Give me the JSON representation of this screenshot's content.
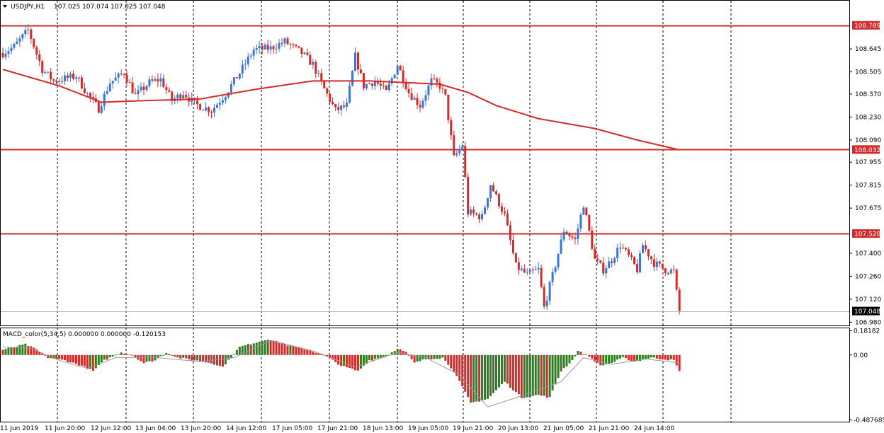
{
  "header": {
    "menu_icon": "triangle-down-icon",
    "symbol": "USDJPY,H1",
    "ohlc": "107.025 107.074 107.025 107.048"
  },
  "indicator": {
    "label": "MACD_color(5,34,5) 0.000000 0.000000 -0.120153"
  },
  "colors": {
    "bull": "#3a75d8",
    "bear": "#d42a2a",
    "hline": "#d42a2a",
    "ma": "#d42a2a",
    "hist_up": "#2e7d1e",
    "hist_down": "#d42a2a",
    "signal": "#9a9a9a",
    "grid": "#000000"
  },
  "chart_data": [
    {
      "type": "candlestick",
      "symbol": "USDJPY",
      "timeframe": "H1",
      "y_ticks": [
        "108.645",
        "108.505",
        "108.370",
        "108.230",
        "108.090",
        "107.955",
        "107.815",
        "107.675",
        "107.400",
        "107.260",
        "107.120",
        "106.980"
      ],
      "ylim": [
        106.96,
        108.9
      ],
      "x_ticks": [
        "11 Jun 2019",
        "11 Jun 20:00",
        "12 Jun 12:00",
        "13 Jun 04:00",
        "13 Jun 20:00",
        "14 Jun 12:00",
        "17 Jun 05:00",
        "17 Jun 21:00",
        "18 Jun 13:00",
        "19 Jun 05:00",
        "19 Jun 21:00",
        "20 Jun 13:00",
        "21 Jun 05:00",
        "21 Jun 21:00",
        "24 Jun 14:00"
      ],
      "horizontal_lines": [
        {
          "value": 108.789,
          "label": "108.789"
        },
        {
          "value": 108.032,
          "label": "108.032"
        },
        {
          "value": 107.52,
          "label": "107.520"
        }
      ],
      "current_price": {
        "value": 107.048,
        "label": "107.048"
      },
      "grid": "vertical-dashed",
      "anchors": [
        [
          0,
          108.62
        ],
        [
          4,
          108.66
        ],
        [
          9,
          108.76
        ],
        [
          14,
          108.52
        ],
        [
          18,
          108.45
        ],
        [
          26,
          108.48
        ],
        [
          30,
          108.37
        ],
        [
          34,
          108.28
        ],
        [
          38,
          108.44
        ],
        [
          43,
          108.5
        ],
        [
          47,
          108.36
        ],
        [
          52,
          108.44
        ],
        [
          56,
          108.46
        ],
        [
          60,
          108.33
        ],
        [
          64,
          108.38
        ],
        [
          68,
          108.31
        ],
        [
          74,
          108.27
        ],
        [
          79,
          108.37
        ],
        [
          84,
          108.5
        ],
        [
          89,
          108.64
        ],
        [
          95,
          108.65
        ],
        [
          100,
          108.69
        ],
        [
          106,
          108.62
        ],
        [
          110,
          108.55
        ],
        [
          114,
          108.4
        ],
        [
          118,
          108.27
        ],
        [
          122,
          108.3
        ],
        [
          125,
          108.6
        ],
        [
          128,
          108.42
        ],
        [
          132,
          108.45
        ],
        [
          136,
          108.38
        ],
        [
          140,
          108.55
        ],
        [
          144,
          108.38
        ],
        [
          148,
          108.3
        ],
        [
          152,
          108.45
        ],
        [
          155,
          108.42
        ],
        [
          157,
          108.35
        ],
        [
          160,
          107.98
        ],
        [
          163,
          108.06
        ],
        [
          165,
          107.65
        ],
        [
          170,
          107.62
        ],
        [
          173,
          107.82
        ],
        [
          178,
          107.63
        ],
        [
          182,
          107.32
        ],
        [
          186,
          107.27
        ],
        [
          190,
          107.3
        ],
        [
          192,
          107.07
        ],
        [
          196,
          107.33
        ],
        [
          199,
          107.54
        ],
        [
          203,
          107.48
        ],
        [
          206,
          107.7
        ],
        [
          210,
          107.36
        ],
        [
          213,
          107.3
        ],
        [
          216,
          107.36
        ],
        [
          219,
          107.45
        ],
        [
          222,
          107.38
        ],
        [
          225,
          107.3
        ],
        [
          227,
          107.45
        ],
        [
          231,
          107.34
        ],
        [
          235,
          107.3
        ],
        [
          238,
          107.29
        ],
        [
          240,
          107.03
        ]
      ],
      "moving_average": [
        [
          0,
          108.52
        ],
        [
          20,
          108.42
        ],
        [
          35,
          108.32
        ],
        [
          50,
          108.33
        ],
        [
          70,
          108.34
        ],
        [
          90,
          108.4
        ],
        [
          110,
          108.45
        ],
        [
          130,
          108.45
        ],
        [
          155,
          108.43
        ],
        [
          165,
          108.38
        ],
        [
          175,
          108.3
        ],
        [
          190,
          108.22
        ],
        [
          210,
          108.16
        ],
        [
          225,
          108.09
        ],
        [
          240,
          108.03
        ]
      ]
    },
    {
      "type": "bar",
      "indicator": "MACD_color(5,34,5)",
      "values_text": "0.000000 0.000000 -0.120153",
      "y_ticks": [
        "0.18182",
        "0.00",
        "-0.487685"
      ],
      "ylim": [
        -0.49,
        0.19
      ],
      "anchors": [
        [
          0,
          0.04
        ],
        [
          8,
          0.08
        ],
        [
          12,
          0.04
        ],
        [
          16,
          -0.02
        ],
        [
          22,
          -0.04
        ],
        [
          28,
          -0.08
        ],
        [
          32,
          -0.12
        ],
        [
          36,
          -0.04
        ],
        [
          42,
          0.02
        ],
        [
          46,
          0.0
        ],
        [
          50,
          -0.06
        ],
        [
          54,
          -0.04
        ],
        [
          58,
          0.02
        ],
        [
          62,
          -0.02
        ],
        [
          68,
          -0.04
        ],
        [
          74,
          -0.06
        ],
        [
          78,
          -0.09
        ],
        [
          84,
          0.06
        ],
        [
          94,
          0.12
        ],
        [
          100,
          0.08
        ],
        [
          108,
          0.04
        ],
        [
          114,
          0.0
        ],
        [
          120,
          -0.08
        ],
        [
          126,
          -0.12
        ],
        [
          130,
          -0.04
        ],
        [
          136,
          -0.01
        ],
        [
          140,
          0.05
        ],
        [
          143,
          0.02
        ],
        [
          146,
          -0.06
        ],
        [
          150,
          -0.03
        ],
        [
          156,
          -0.02
        ],
        [
          160,
          -0.12
        ],
        [
          166,
          -0.36
        ],
        [
          172,
          -0.33
        ],
        [
          178,
          -0.2
        ],
        [
          184,
          -0.32
        ],
        [
          190,
          -0.3
        ],
        [
          194,
          -0.32
        ],
        [
          198,
          -0.12
        ],
        [
          202,
          -0.04
        ],
        [
          204,
          0.03
        ],
        [
          208,
          -0.01
        ],
        [
          212,
          -0.08
        ],
        [
          216,
          -0.06
        ],
        [
          220,
          -0.02
        ],
        [
          224,
          -0.05
        ],
        [
          230,
          -0.02
        ],
        [
          234,
          -0.03
        ],
        [
          238,
          -0.04
        ],
        [
          240,
          -0.12
        ]
      ],
      "signal": [
        [
          0,
          0.06
        ],
        [
          10,
          0.05
        ],
        [
          20,
          -0.04
        ],
        [
          30,
          -0.1
        ],
        [
          40,
          -0.02
        ],
        [
          55,
          -0.02
        ],
        [
          70,
          -0.05
        ],
        [
          82,
          -0.02
        ],
        [
          95,
          0.11
        ],
        [
          110,
          0.03
        ],
        [
          125,
          -0.09
        ],
        [
          140,
          0.02
        ],
        [
          150,
          -0.02
        ],
        [
          162,
          -0.15
        ],
        [
          172,
          -0.39
        ],
        [
          185,
          -0.3
        ],
        [
          198,
          -0.2
        ],
        [
          206,
          -0.02
        ],
        [
          216,
          -0.07
        ],
        [
          228,
          -0.03
        ],
        [
          240,
          -0.06
        ]
      ]
    }
  ]
}
